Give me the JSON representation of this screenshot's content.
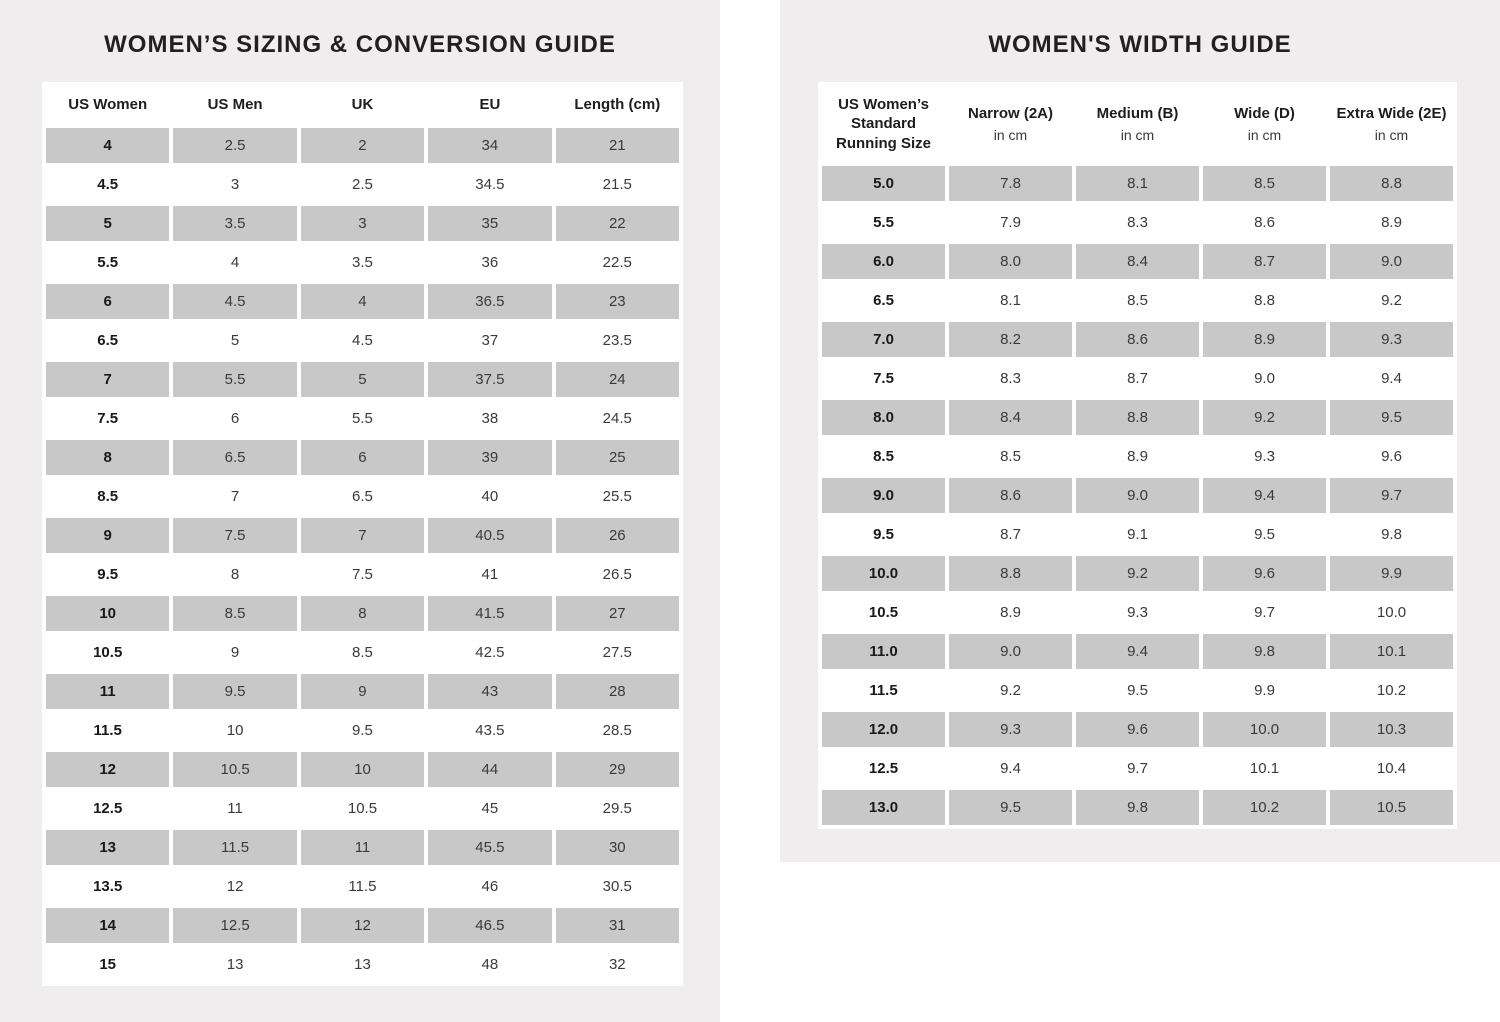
{
  "colors": {
    "panel_background": "#f0edee",
    "row_shade": "#c9c8c8",
    "title_text": "#231f20"
  },
  "sizing_guide": {
    "title": "WOMEN’S SIZING & CONVERSION GUIDE",
    "columns": [
      "US Women",
      "US Men",
      "UK",
      "EU",
      "Length (cm)"
    ],
    "rows": [
      [
        "4",
        "2.5",
        "2",
        "34",
        "21"
      ],
      [
        "4.5",
        "3",
        "2.5",
        "34.5",
        "21.5"
      ],
      [
        "5",
        "3.5",
        "3",
        "35",
        "22"
      ],
      [
        "5.5",
        "4",
        "3.5",
        "36",
        "22.5"
      ],
      [
        "6",
        "4.5",
        "4",
        "36.5",
        "23"
      ],
      [
        "6.5",
        "5",
        "4.5",
        "37",
        "23.5"
      ],
      [
        "7",
        "5.5",
        "5",
        "37.5",
        "24"
      ],
      [
        "7.5",
        "6",
        "5.5",
        "38",
        "24.5"
      ],
      [
        "8",
        "6.5",
        "6",
        "39",
        "25"
      ],
      [
        "8.5",
        "7",
        "6.5",
        "40",
        "25.5"
      ],
      [
        "9",
        "7.5",
        "7",
        "40.5",
        "26"
      ],
      [
        "9.5",
        "8",
        "7.5",
        "41",
        "26.5"
      ],
      [
        "10",
        "8.5",
        "8",
        "41.5",
        "27"
      ],
      [
        "10.5",
        "9",
        "8.5",
        "42.5",
        "27.5"
      ],
      [
        "11",
        "9.5",
        "9",
        "43",
        "28"
      ],
      [
        "11.5",
        "10",
        "9.5",
        "43.5",
        "28.5"
      ],
      [
        "12",
        "10.5",
        "10",
        "44",
        "29"
      ],
      [
        "12.5",
        "11",
        "10.5",
        "45",
        "29.5"
      ],
      [
        "13",
        "11.5",
        "11",
        "45.5",
        "30"
      ],
      [
        "13.5",
        "12",
        "11.5",
        "46",
        "30.5"
      ],
      [
        "14",
        "12.5",
        "12",
        "46.5",
        "31"
      ],
      [
        "15",
        "13",
        "13",
        "48",
        "32"
      ]
    ]
  },
  "width_guide": {
    "title": "WOMEN'S WIDTH GUIDE",
    "columns": [
      {
        "label": "US Women’s Standard Running Size",
        "sub": ""
      },
      {
        "label": "Narrow (2A)",
        "sub": "in cm"
      },
      {
        "label": "Medium (B)",
        "sub": "in cm"
      },
      {
        "label": "Wide (D)",
        "sub": "in cm"
      },
      {
        "label": "Extra Wide (2E)",
        "sub": "in cm"
      }
    ],
    "rows": [
      [
        "5.0",
        "7.8",
        "8.1",
        "8.5",
        "8.8"
      ],
      [
        "5.5",
        "7.9",
        "8.3",
        "8.6",
        "8.9"
      ],
      [
        "6.0",
        "8.0",
        "8.4",
        "8.7",
        "9.0"
      ],
      [
        "6.5",
        "8.1",
        "8.5",
        "8.8",
        "9.2"
      ],
      [
        "7.0",
        "8.2",
        "8.6",
        "8.9",
        "9.3"
      ],
      [
        "7.5",
        "8.3",
        "8.7",
        "9.0",
        "9.4"
      ],
      [
        "8.0",
        "8.4",
        "8.8",
        "9.2",
        "9.5"
      ],
      [
        "8.5",
        "8.5",
        "8.9",
        "9.3",
        "9.6"
      ],
      [
        "9.0",
        "8.6",
        "9.0",
        "9.4",
        "9.7"
      ],
      [
        "9.5",
        "8.7",
        "9.1",
        "9.5",
        "9.8"
      ],
      [
        "10.0",
        "8.8",
        "9.2",
        "9.6",
        "9.9"
      ],
      [
        "10.5",
        "8.9",
        "9.3",
        "9.7",
        "10.0"
      ],
      [
        "11.0",
        "9.0",
        "9.4",
        "9.8",
        "10.1"
      ],
      [
        "11.5",
        "9.2",
        "9.5",
        "9.9",
        "10.2"
      ],
      [
        "12.0",
        "9.3",
        "9.6",
        "10.0",
        "10.3"
      ],
      [
        "12.5",
        "9.4",
        "9.7",
        "10.1",
        "10.4"
      ],
      [
        "13.0",
        "9.5",
        "9.8",
        "10.2",
        "10.5"
      ]
    ]
  }
}
